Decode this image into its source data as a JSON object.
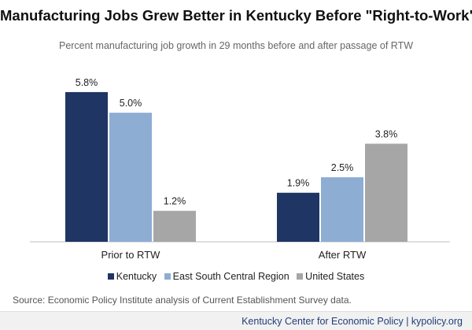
{
  "chart_data": {
    "type": "bar",
    "title": "Manufacturing Jobs Grew Better in Kentucky Before \"Right-to-Work\"",
    "subtitle": "Percent manufacturing job growth in 29 months before and after passage of RTW",
    "categories": [
      "Prior to RTW",
      "After RTW"
    ],
    "series": [
      {
        "name": "Kentucky",
        "color": "#1f3563",
        "values": [
          5.8,
          1.9
        ],
        "labels": [
          "5.8%",
          "1.9%"
        ]
      },
      {
        "name": "East South Central Region",
        "color": "#8eadd3",
        "values": [
          5.0,
          2.5
        ],
        "labels": [
          "5.0%",
          "2.5%"
        ]
      },
      {
        "name": "United States",
        "color": "#a6a6a6",
        "values": [
          1.2,
          3.8
        ],
        "labels": [
          "1.2%",
          "3.8%"
        ]
      }
    ],
    "ylim": [
      0,
      6.5
    ],
    "grid": false,
    "legend_position": "bottom",
    "xlabel": "",
    "ylabel": ""
  },
  "source": "Source: Economic Policy Institute analysis of Current Establishment Survey data.",
  "footer": "Kentucky Center for Economic Policy | kypolicy.org"
}
